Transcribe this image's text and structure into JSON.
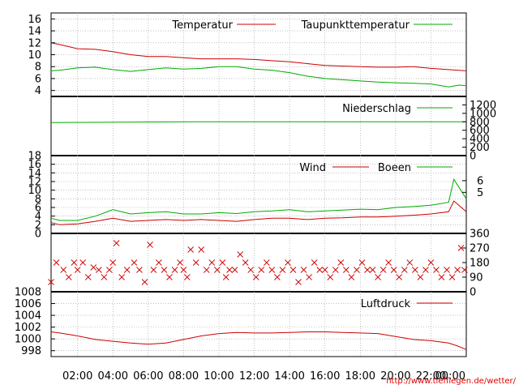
{
  "colors": {
    "red": "#cc0000",
    "green": "#00aa00",
    "grid": "#999999",
    "frame": "#000000",
    "url": "#e00000"
  },
  "x_axis": {
    "ticks": [
      "02:00",
      "04:00",
      "06:00",
      "08:00",
      "10:00",
      "12:00",
      "14:00",
      "16:00",
      "18:00",
      "20:00",
      "22:00",
      "00:00"
    ],
    "tick_hours": [
      2,
      4,
      6,
      8,
      10,
      12,
      14,
      16,
      18,
      20,
      22,
      24
    ],
    "range_hours": [
      0.5,
      24
    ]
  },
  "source_url": "http://www.tiefflegen.de/wetter/",
  "chart_data": [
    {
      "type": "line",
      "panel": "temperature",
      "ylim": [
        3,
        17
      ],
      "yticks": [
        "4",
        "6",
        "8",
        "10",
        "12",
        "14",
        "16"
      ],
      "ytick_values": [
        4,
        6,
        8,
        10,
        12,
        14,
        16
      ],
      "grid": true,
      "legend_placement": "top",
      "series": [
        {
          "name": "Temperatur",
          "color": "#cc0000",
          "x": [
            0.5,
            1,
            2,
            3,
            4,
            5,
            6,
            7,
            8,
            9,
            10,
            11,
            12,
            13,
            14,
            15,
            16,
            17,
            18,
            19,
            20,
            21,
            22,
            23,
            24
          ],
          "y": [
            12,
            11.7,
            11,
            10.9,
            10.5,
            10,
            9.7,
            9.7,
            9.5,
            9.3,
            9.3,
            9.3,
            9.2,
            9,
            8.8,
            8.5,
            8.2,
            8.1,
            8,
            7.9,
            7.9,
            8,
            7.7,
            7.5,
            7.3
          ]
        },
        {
          "name": "Taupunkttemperatur",
          "color": "#00aa00",
          "x": [
            0.5,
            1,
            2,
            3,
            4,
            5,
            6,
            7,
            8,
            9,
            10,
            11,
            12,
            13,
            14,
            15,
            16,
            17,
            18,
            19,
            20,
            21,
            22,
            23,
            23.6,
            24
          ],
          "y": [
            7.3,
            7.4,
            7.8,
            7.9,
            7.5,
            7.2,
            7.5,
            7.8,
            7.6,
            7.7,
            8,
            8,
            7.6,
            7.4,
            7,
            6.4,
            6,
            5.8,
            5.6,
            5.4,
            5.3,
            5.2,
            5.1,
            4.6,
            4.9,
            4.8
          ]
        }
      ]
    },
    {
      "type": "line",
      "panel": "precipitation",
      "ylim": [
        0,
        1400
      ],
      "yticks": [
        "0",
        "200",
        "400",
        "600",
        "800",
        "1000",
        "1200"
      ],
      "ytick_values": [
        0,
        200,
        400,
        600,
        800,
        1000,
        1200
      ],
      "grid": false,
      "legend_placement": "top",
      "series": [
        {
          "name": "Niederschlag",
          "color": "#00aa00",
          "x": [
            0.5,
            8.5,
            24
          ],
          "y": [
            780,
            800,
            800
          ]
        }
      ]
    },
    {
      "type": "line",
      "panel": "wind",
      "ylim": [
        0,
        18
      ],
      "yticks": [
        "0",
        "2",
        "4",
        "6",
        "8",
        "10",
        "12",
        "14",
        "16",
        "18"
      ],
      "ytick_values": [
        0,
        2,
        4,
        6,
        8,
        10,
        12,
        14,
        16,
        18
      ],
      "right_ticks": [
        "5",
        "6"
      ],
      "right_tick_values": [
        9.5,
        12.2
      ],
      "grid": true,
      "legend_placement": "top",
      "series": [
        {
          "name": "Wind",
          "color": "#cc0000",
          "x": [
            0.5,
            1,
            2,
            3,
            4,
            5,
            6,
            7,
            8,
            9,
            10,
            11,
            12,
            13,
            14,
            15,
            16,
            17,
            18,
            19,
            20,
            21,
            22,
            23,
            23.3,
            24
          ],
          "y": [
            2.5,
            2,
            2.2,
            2.8,
            3.5,
            2.8,
            3,
            3.2,
            3,
            3.2,
            3,
            2.8,
            3.2,
            3.5,
            3.5,
            3.2,
            3.5,
            3.6,
            3.8,
            3.8,
            4,
            4.2,
            4.5,
            5,
            7.5,
            5
          ]
        },
        {
          "name": "Boeen",
          "color": "#00aa00",
          "x": [
            0.5,
            1,
            2,
            3,
            4,
            5,
            6,
            7,
            8,
            9,
            10,
            11,
            12,
            13,
            14,
            15,
            16,
            17,
            18,
            19,
            20,
            21,
            22,
            23,
            23.3,
            24
          ],
          "y": [
            3.5,
            3,
            3,
            4,
            5.5,
            4.5,
            4.8,
            5,
            4.5,
            4.5,
            4.8,
            4.6,
            5,
            5.2,
            5.5,
            5,
            5.2,
            5.4,
            5.6,
            5.5,
            6,
            6.2,
            6.5,
            7.2,
            12.5,
            8
          ]
        }
      ]
    },
    {
      "type": "scatter",
      "panel": "wind_direction",
      "ylim": [
        0,
        360
      ],
      "yticks": [
        "0",
        "90",
        "180",
        "270",
        "360"
      ],
      "ytick_values": [
        0,
        90,
        180,
        270,
        360
      ],
      "grid": false,
      "series": [
        {
          "color": "#cc0000",
          "x": [
            0.5,
            0.8,
            1.2,
            1.5,
            1.8,
            2,
            2.3,
            2.6,
            2.9,
            3.2,
            3.5,
            3.8,
            4,
            4.2,
            4.5,
            4.8,
            5.2,
            5.5,
            5.8,
            6.1,
            6.3,
            6.6,
            6.9,
            7.2,
            7.5,
            7.8,
            8,
            8.2,
            8.4,
            8.7,
            9,
            9.3,
            9.6,
            9.9,
            10.2,
            10.4,
            10.6,
            10.9,
            11.2,
            11.5,
            11.8,
            12.1,
            12.4,
            12.7,
            13,
            13.3,
            13.6,
            13.9,
            14.2,
            14.5,
            14.8,
            15.1,
            15.4,
            15.7,
            16,
            16.3,
            16.6,
            16.9,
            17.2,
            17.5,
            17.8,
            18.1,
            18.4,
            18.7,
            19,
            19.3,
            19.6,
            19.9,
            20.2,
            20.5,
            20.8,
            21.1,
            21.4,
            21.7,
            22,
            22.3,
            22.6,
            22.9,
            23.2,
            23.5,
            23.7,
            23.9
          ],
          "y": [
            60,
            180,
            135,
            90,
            180,
            135,
            180,
            90,
            150,
            135,
            90,
            135,
            180,
            300,
            90,
            135,
            180,
            135,
            60,
            290,
            135,
            180,
            135,
            90,
            135,
            180,
            135,
            90,
            260,
            180,
            260,
            135,
            180,
            135,
            180,
            90,
            135,
            135,
            230,
            180,
            135,
            90,
            135,
            180,
            135,
            90,
            135,
            180,
            135,
            60,
            135,
            90,
            180,
            135,
            135,
            90,
            135,
            180,
            135,
            90,
            135,
            180,
            135,
            135,
            90,
            135,
            180,
            135,
            90,
            135,
            180,
            135,
            90,
            135,
            180,
            135,
            90,
            135,
            90,
            135,
            270,
            135
          ]
        }
      ]
    },
    {
      "type": "line",
      "panel": "pressure",
      "ylim": [
        997,
        1008
      ],
      "yticks": [
        "998",
        "1000",
        "1002",
        "1004",
        "1006",
        "1008"
      ],
      "ytick_values": [
        998,
        1000,
        1002,
        1004,
        1006,
        1008
      ],
      "grid": true,
      "legend_placement": "top",
      "series": [
        {
          "name": "Luftdruck",
          "color": "#cc0000",
          "x": [
            0.5,
            1,
            2,
            3,
            4,
            5,
            6,
            7,
            8,
            9,
            10,
            11,
            12,
            13,
            14,
            15,
            16,
            17,
            18,
            19,
            20,
            21,
            22,
            23,
            23.5,
            24
          ],
          "y": [
            1001.2,
            1001,
            1000.5,
            999.9,
            999.6,
            999.3,
            999.1,
            999.3,
            999.9,
            1000.5,
            1000.9,
            1001.1,
            1001,
            1001,
            1001.1,
            1001.2,
            1001.2,
            1001.1,
            1001,
            1000.9,
            1000.4,
            999.9,
            999.7,
            999.3,
            998.8,
            998.2
          ]
        }
      ]
    }
  ]
}
